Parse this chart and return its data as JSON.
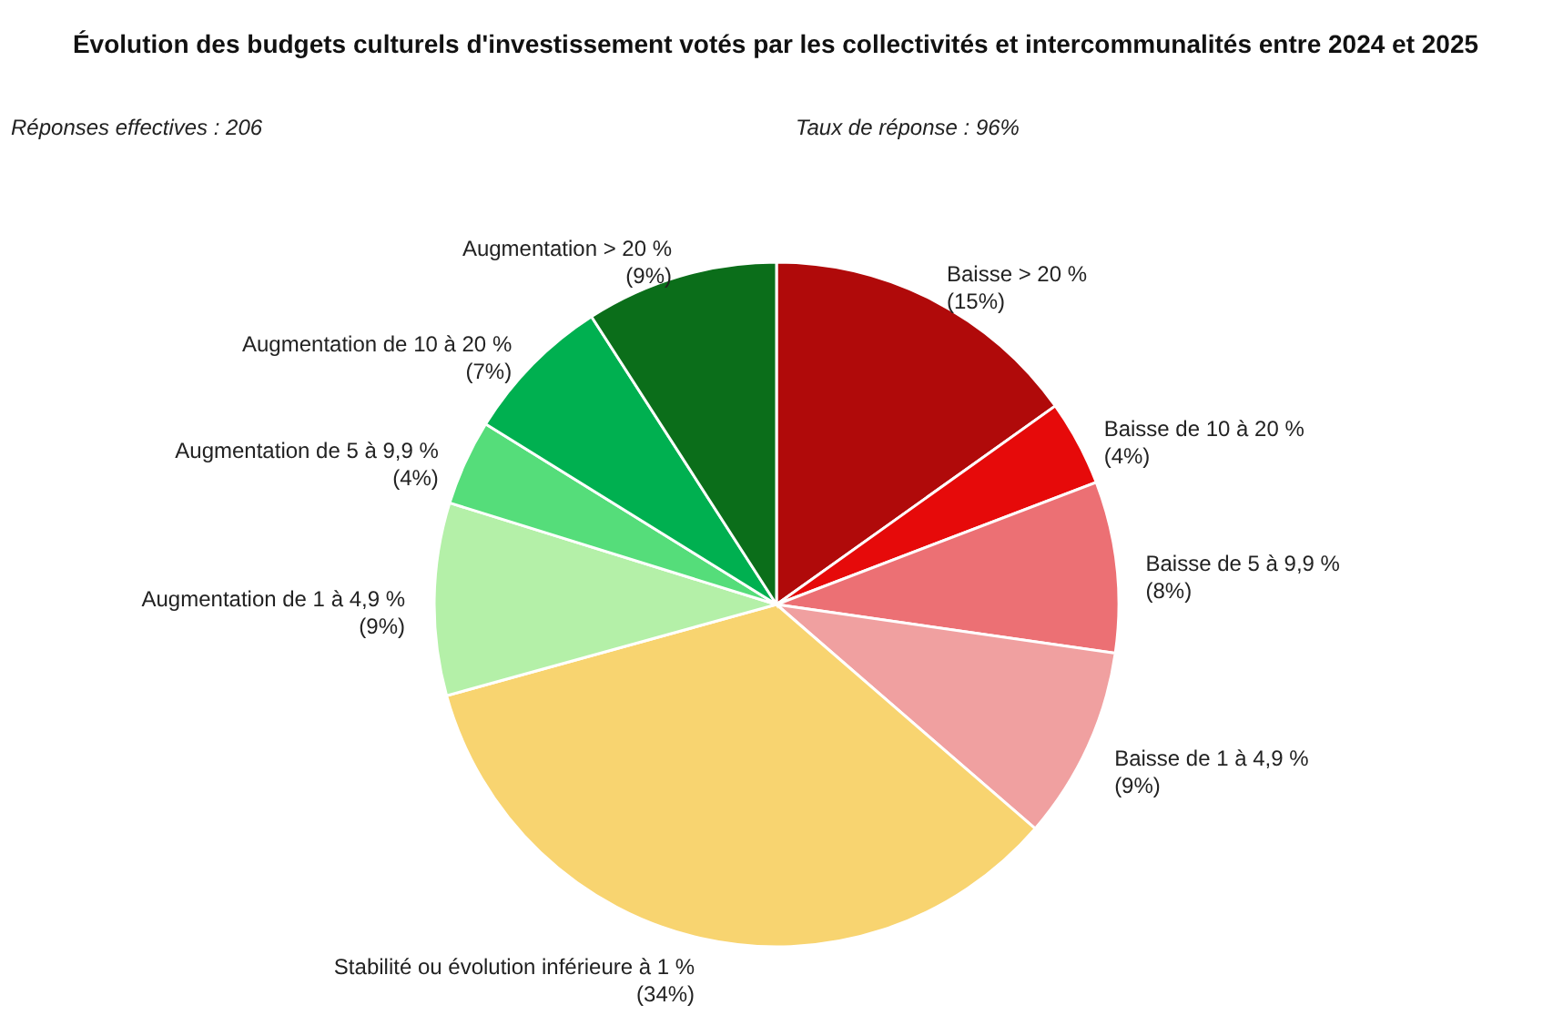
{
  "chart_data": {
    "type": "pie",
    "title": "Évolution des budgets culturels d'investissement votés par les collectivités et intercommunalités entre 2024 et 2025",
    "annotations": [
      "Réponses effectives : 206",
      "Taux de réponse : 96%"
    ],
    "categories": [
      "Baisse > 20 %",
      "Baisse de 10 à 20 %",
      "Baisse de 5 à 9,9 %",
      "Baisse de 1 à 4,9 %",
      "Stabilité ou évolution inférieure à 1 %",
      "Augmentation de 1 à 4,9 %",
      "Augmentation de 5 à 9,9 %",
      "Augmentation de 10 à 20 %",
      "Augmentation > 20 %"
    ],
    "values": [
      15,
      4,
      8,
      9,
      34,
      9,
      4,
      7,
      9
    ],
    "colors": [
      "#b00a0a",
      "#e60a0a",
      "#ec7074",
      "#f0a0a0",
      "#f8d470",
      "#b4f0a8",
      "#55dd7a",
      "#00b050",
      "#0b6e1a"
    ],
    "value_labels": [
      "(15%)",
      "(4%)",
      "(8%)",
      "(9%)",
      "(34%)",
      "(9%)",
      "(4%)",
      "(7%)",
      "(9%)"
    ]
  }
}
